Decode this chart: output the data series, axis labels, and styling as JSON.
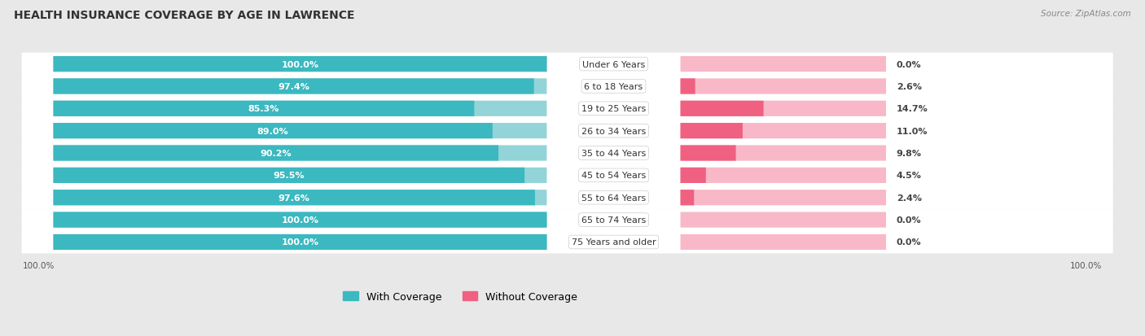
{
  "title": "HEALTH INSURANCE COVERAGE BY AGE IN LAWRENCE",
  "source": "Source: ZipAtlas.com",
  "categories": [
    "Under 6 Years",
    "6 to 18 Years",
    "19 to 25 Years",
    "26 to 34 Years",
    "35 to 44 Years",
    "45 to 54 Years",
    "55 to 64 Years",
    "65 to 74 Years",
    "75 Years and older"
  ],
  "with_coverage": [
    100.0,
    97.4,
    85.3,
    89.0,
    90.2,
    95.5,
    97.6,
    100.0,
    100.0
  ],
  "without_coverage": [
    0.0,
    2.6,
    14.7,
    11.0,
    9.8,
    4.5,
    2.4,
    0.0,
    0.0
  ],
  "color_with_dark": "#3bb8c0",
  "color_with_light": "#92d4d8",
  "color_without_dark": "#f06080",
  "color_without_light": "#f8b8c8",
  "bg_color": "#e8e8e8",
  "row_bg": "#f5f5f5",
  "title_fontsize": 10,
  "bar_label_fontsize": 8,
  "cat_label_fontsize": 8,
  "legend_fontsize": 9
}
